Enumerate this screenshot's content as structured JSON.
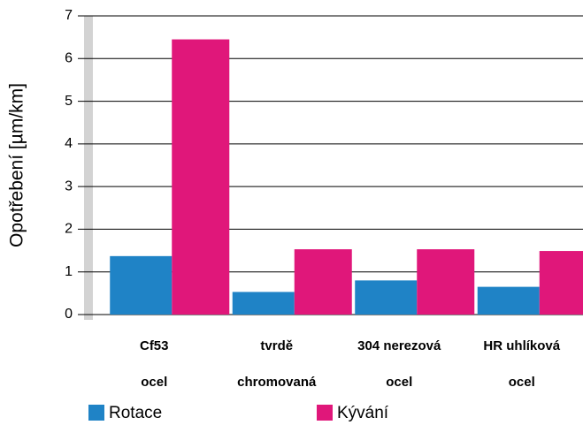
{
  "chart_data": {
    "type": "bar",
    "y_label": "Opotřebení [µm/km]",
    "categories": [
      [
        "Cf53",
        "ocel"
      ],
      [
        "tvrdě",
        "chromovaná"
      ],
      [
        "304 nerezová",
        "ocel"
      ],
      [
        "HR uhlíková",
        "ocel"
      ]
    ],
    "series": [
      {
        "name": "Rotace",
        "color": "#1f83c6",
        "values": [
          1.37,
          0.53,
          0.8,
          0.65
        ]
      },
      {
        "name": "Kývání",
        "color": "#e0177a",
        "values": [
          6.45,
          1.53,
          1.53,
          1.49
        ]
      }
    ],
    "ylim": [
      0,
      7
    ],
    "yticks": [
      0,
      1,
      2,
      3,
      4,
      5,
      6,
      7
    ],
    "grid": true
  }
}
